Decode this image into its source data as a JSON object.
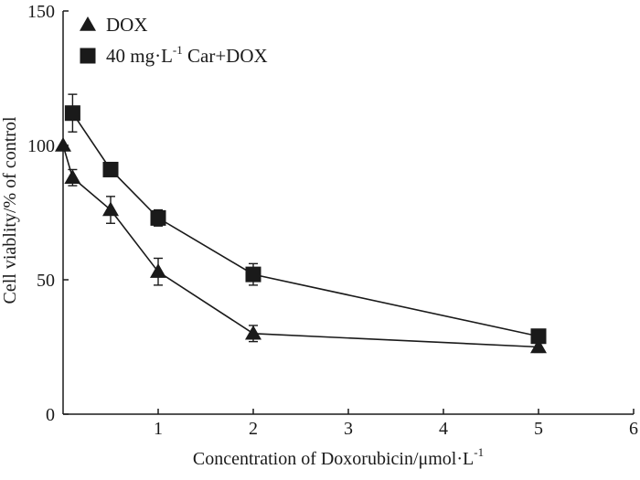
{
  "chart_data": {
    "type": "line",
    "xlabel": "Concentration of Doxorubicin/μmol·L",
    "xlabel_sup": "-1",
    "ylabel": "Cell viablity/% of control",
    "xlim": [
      0,
      6
    ],
    "ylim": [
      0,
      150
    ],
    "x_ticks": [
      1,
      2,
      3,
      4,
      5,
      6
    ],
    "y_ticks": [
      0,
      50,
      100,
      150
    ],
    "grid": false,
    "legend_position": "top-left",
    "series": [
      {
        "name": "DOX",
        "marker": "triangle",
        "x": [
          0,
          0.1,
          0.5,
          1,
          2,
          5
        ],
        "y": [
          100,
          88,
          76,
          53,
          30,
          25
        ],
        "err": [
          0,
          3,
          5,
          5,
          3,
          2
        ]
      },
      {
        "name": "40 mg·L",
        "name_sup": "-1",
        "name_suffix": " Car+DOX",
        "marker": "square",
        "x": [
          0.1,
          0.5,
          1,
          2,
          5
        ],
        "y": [
          112,
          91,
          73,
          52,
          29
        ],
        "err": [
          7,
          2,
          3,
          4,
          2
        ]
      }
    ]
  }
}
